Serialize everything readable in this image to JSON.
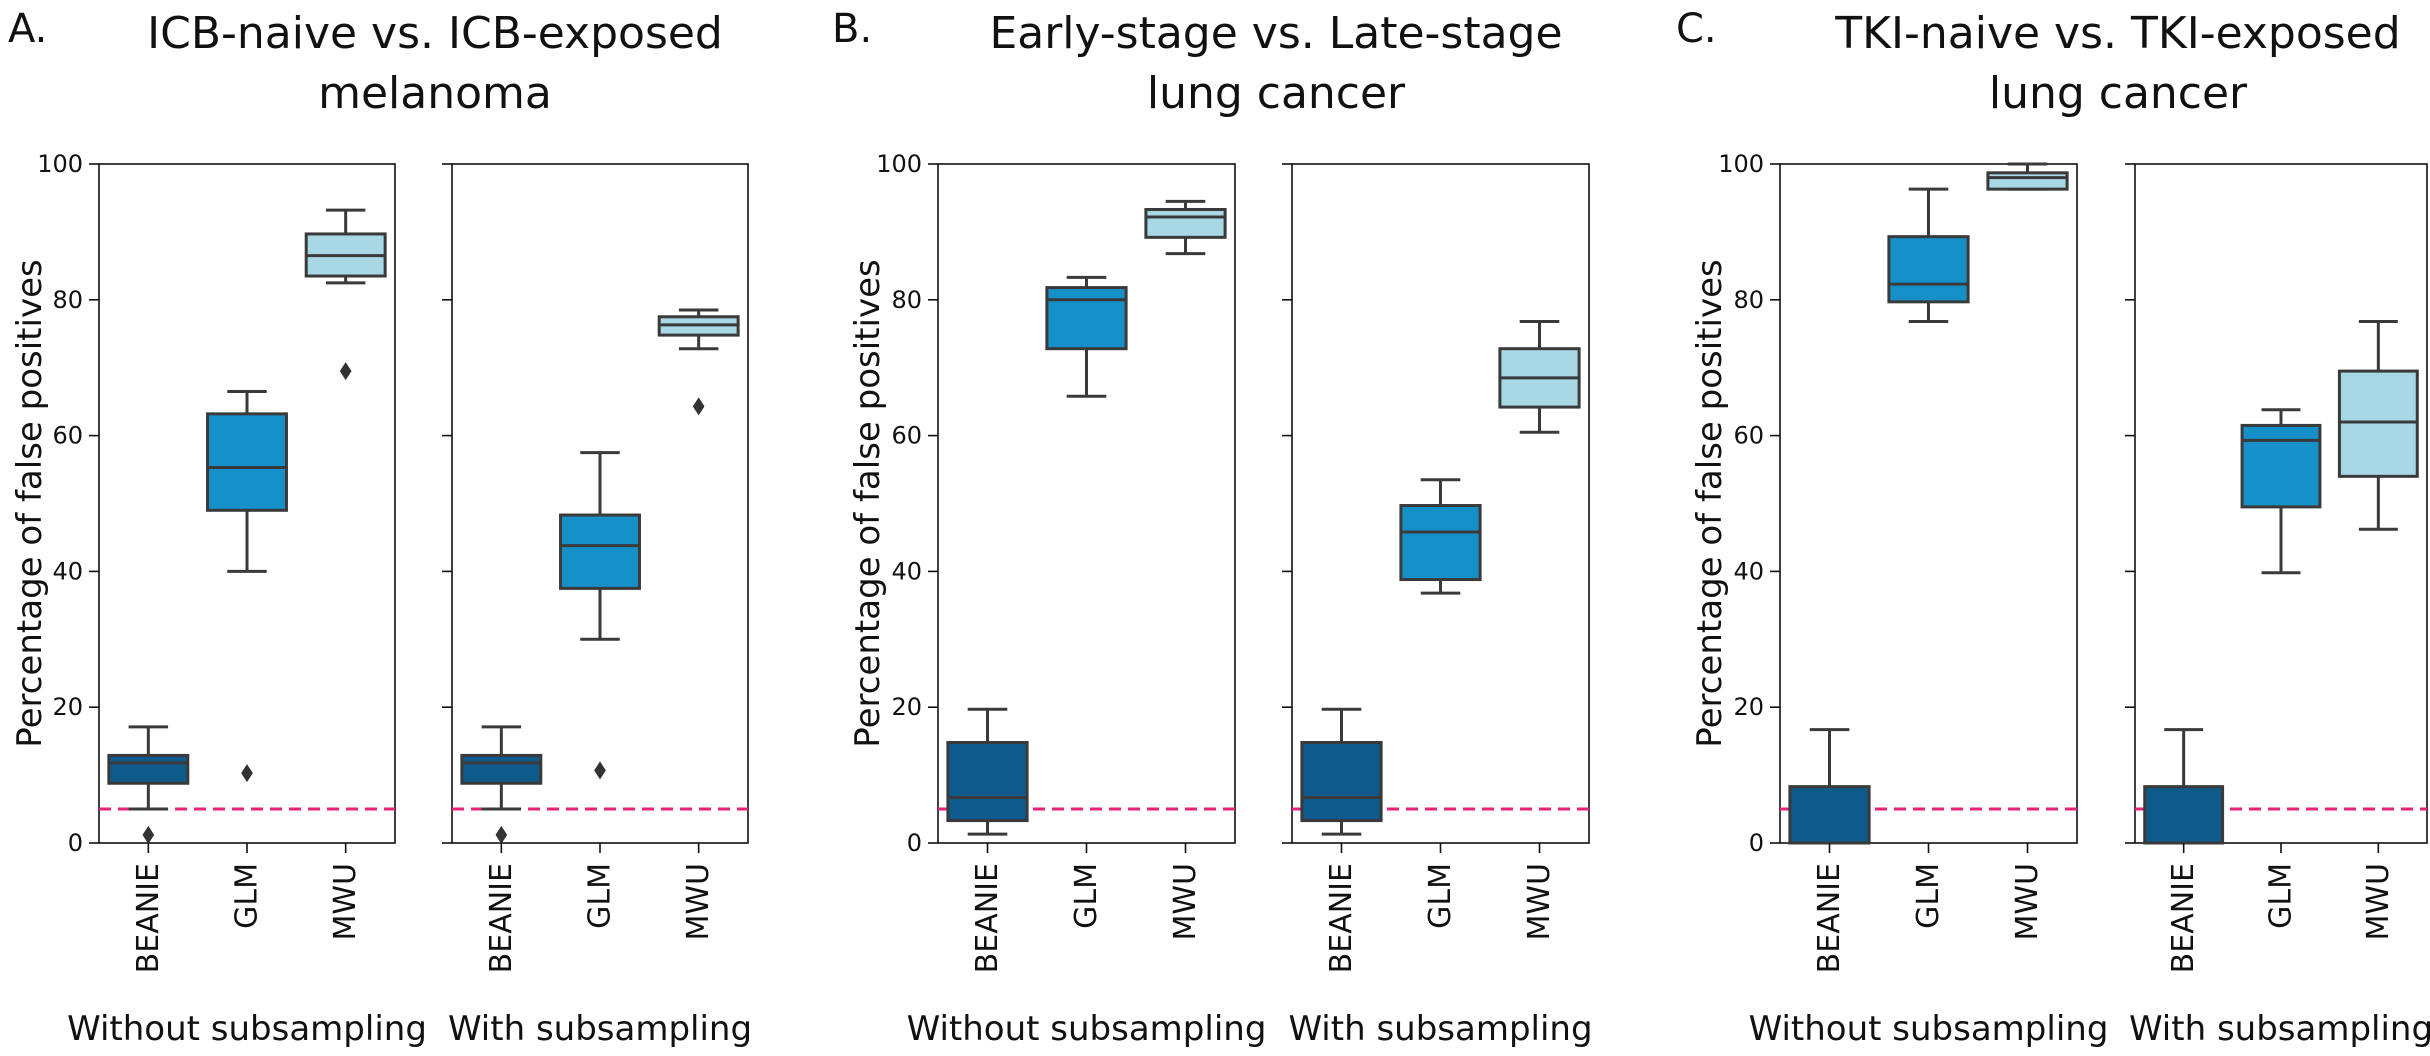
{
  "chart_data": [
    {
      "type": "box",
      "panel_letter": "A.",
      "title_lines": [
        "ICB-naive vs. ICB-exposed",
        "melanoma"
      ],
      "ylabel": "Percentage of false positives",
      "ylim": [
        0,
        100
      ],
      "yticks": [
        0,
        20,
        40,
        60,
        80,
        100
      ],
      "reference_line": 5,
      "subplots": [
        {
          "xlabel": "Without subsampling",
          "categories": [
            "BEANIE",
            "GLM",
            "MWU"
          ],
          "boxes": [
            {
              "q1": 8.8,
              "median": 11.8,
              "q3": 12.9,
              "whislo": 5,
              "whishi": 17.1,
              "fliers": [
                1.2
              ]
            },
            {
              "q1": 49,
              "median": 55.3,
              "q3": 63.2,
              "whislo": 40,
              "whishi": 66.5,
              "fliers": [
                10.3
              ]
            },
            {
              "q1": 83.5,
              "median": 86.5,
              "q3": 89.7,
              "whislo": 82.5,
              "whishi": 93.2,
              "fliers": [
                69.5
              ]
            }
          ]
        },
        {
          "xlabel": "With subsampling",
          "categories": [
            "BEANIE",
            "GLM",
            "MWU"
          ],
          "boxes": [
            {
              "q1": 8.8,
              "median": 11.8,
              "q3": 12.9,
              "whislo": 5,
              "whishi": 17.1,
              "fliers": [
                1.2
              ]
            },
            {
              "q1": 37.5,
              "median": 43.8,
              "q3": 48.3,
              "whislo": 30,
              "whishi": 57.5,
              "fliers": [
                10.7
              ]
            },
            {
              "q1": 74.8,
              "median": 76.3,
              "q3": 77.5,
              "whislo": 72.8,
              "whishi": 78.5,
              "fliers": [
                64.3
              ]
            }
          ]
        }
      ]
    },
    {
      "type": "box",
      "panel_letter": "B.",
      "title_lines": [
        "Early-stage vs. Late-stage",
        "lung cancer"
      ],
      "ylabel": "Percentage of false positives",
      "ylim": [
        0,
        100
      ],
      "yticks": [
        0,
        20,
        40,
        60,
        80,
        100
      ],
      "reference_line": 5,
      "subplots": [
        {
          "xlabel": "Without subsampling",
          "categories": [
            "BEANIE",
            "GLM",
            "MWU"
          ],
          "boxes": [
            {
              "q1": 3.3,
              "median": 6.7,
              "q3": 14.8,
              "whislo": 1.3,
              "whishi": 19.7,
              "fliers": []
            },
            {
              "q1": 72.8,
              "median": 80,
              "q3": 81.8,
              "whislo": 65.8,
              "whishi": 83.3,
              "fliers": []
            },
            {
              "q1": 89.2,
              "median": 92.2,
              "q3": 93.3,
              "whislo": 86.8,
              "whishi": 94.5,
              "fliers": []
            }
          ]
        },
        {
          "xlabel": "With subsampling",
          "categories": [
            "BEANIE",
            "GLM",
            "MWU"
          ],
          "boxes": [
            {
              "q1": 3.3,
              "median": 6.7,
              "q3": 14.8,
              "whislo": 1.3,
              "whishi": 19.7,
              "fliers": []
            },
            {
              "q1": 38.8,
              "median": 45.8,
              "q3": 49.7,
              "whislo": 36.8,
              "whishi": 53.5,
              "fliers": []
            },
            {
              "q1": 64.2,
              "median": 68.5,
              "q3": 72.8,
              "whislo": 60.5,
              "whishi": 76.8,
              "fliers": []
            }
          ]
        }
      ]
    },
    {
      "type": "box",
      "panel_letter": "C.",
      "title_lines": [
        "TKI-naive vs. TKI-exposed",
        "lung cancer"
      ],
      "ylabel": "Percentage of false positives",
      "ylim": [
        0,
        100
      ],
      "yticks": [
        0,
        20,
        40,
        60,
        80,
        100
      ],
      "reference_line": 5,
      "subplots": [
        {
          "xlabel": "Without subsampling",
          "categories": [
            "BEANIE",
            "GLM",
            "MWU"
          ],
          "boxes": [
            {
              "q1": 0,
              "median": 0,
              "q3": 8.3,
              "whislo": 0,
              "whishi": 16.7,
              "fliers": []
            },
            {
              "q1": 79.7,
              "median": 82.3,
              "q3": 89.3,
              "whislo": 76.8,
              "whishi": 96.3,
              "fliers": []
            },
            {
              "q1": 96.3,
              "median": 98,
              "q3": 98.7,
              "whislo": 96.3,
              "whishi": 100,
              "fliers": []
            }
          ]
        },
        {
          "xlabel": "With subsampling",
          "categories": [
            "BEANIE",
            "GLM",
            "MWU"
          ],
          "boxes": [
            {
              "q1": 0,
              "median": 0,
              "q3": 8.3,
              "whislo": 0,
              "whishi": 16.7,
              "fliers": []
            },
            {
              "q1": 49.5,
              "median": 59.3,
              "q3": 61.5,
              "whislo": 39.8,
              "whishi": 63.8,
              "fliers": []
            },
            {
              "q1": 54,
              "median": 62,
              "q3": 69.5,
              "whislo": 46.2,
              "whishi": 76.8,
              "fliers": []
            }
          ]
        }
      ]
    }
  ],
  "colors": {
    "BEANIE": "#0e5a8a",
    "GLM": "#1590c9",
    "MWU": "#a8d8e6",
    "box_edge": "#3a3a3a",
    "reference_line": "#e8217a",
    "axis": "#111111"
  }
}
